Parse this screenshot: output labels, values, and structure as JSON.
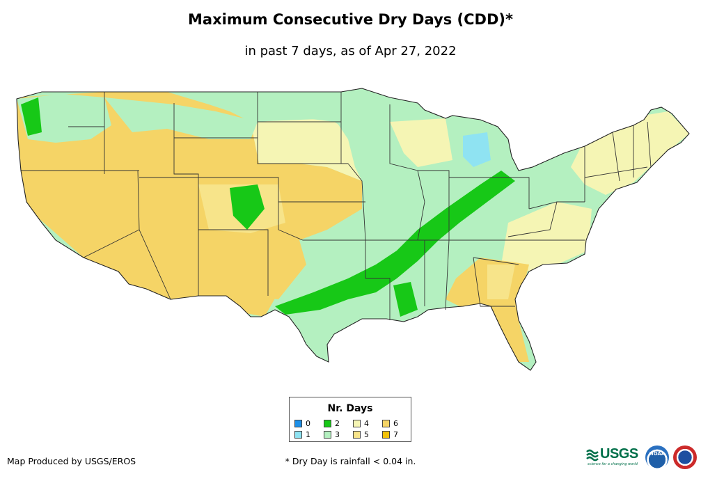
{
  "title": "Maximum Consecutive Dry Days (CDD)*",
  "subtitle": "in past 7 days, as of Apr 27, 2022",
  "legend": {
    "title": "Nr. Days",
    "items": [
      {
        "label": "0",
        "color": "#1e90e8"
      },
      {
        "label": "2",
        "color": "#17c817"
      },
      {
        "label": "4",
        "color": "#f5f5b4"
      },
      {
        "label": "6",
        "color": "#f5d466"
      },
      {
        "label": "1",
        "color": "#8fe3f2"
      },
      {
        "label": "3",
        "color": "#b4f0c0"
      },
      {
        "label": "5",
        "color": "#f7e48a"
      },
      {
        "label": "7",
        "color": "#f2c20a"
      }
    ]
  },
  "footer": {
    "credit": "Map Produced by USGS/EROS",
    "footnote": "* Dry Day is rainfall < 0.04 in.",
    "logo_usgs": "USGS",
    "logo_usgs_tagline": "science for a changing world",
    "logo_noaa": "NOAA"
  },
  "colors": {
    "days_1": "#8fe3f2",
    "days_2": "#17c817",
    "days_3": "#b4f0c0",
    "days_4": "#f5f5b4",
    "days_5": "#f7e48a",
    "days_6": "#f5d466",
    "days_7": "#f2c20a",
    "state_border": "#333333"
  }
}
